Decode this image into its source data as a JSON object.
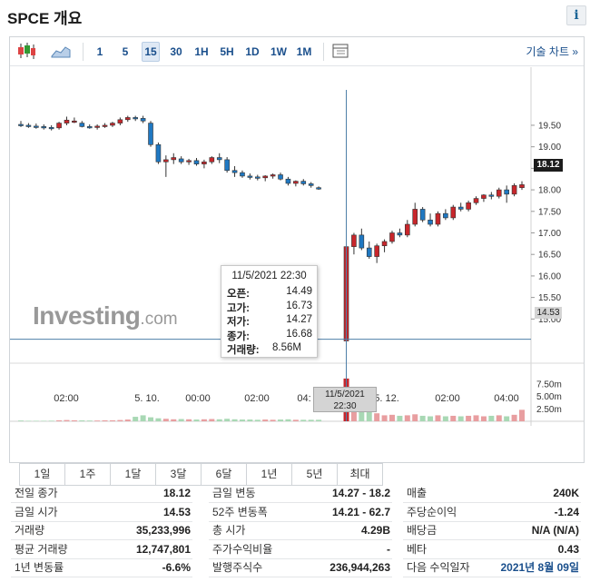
{
  "header": {
    "title": "SPCE 개요",
    "info_icon": "i"
  },
  "toolbar": {
    "intervals": [
      "1",
      "5",
      "15",
      "30",
      "1H",
      "5H",
      "1D",
      "1W",
      "1M"
    ],
    "active_interval": "15",
    "tech_chart_link": "기술 차트 »"
  },
  "chart_data": {
    "type": "candlestick",
    "y_axis_ticks": [
      "19.50",
      "19.00",
      "18.50",
      "18.00",
      "17.50",
      "17.00",
      "16.50",
      "16.00",
      "15.50",
      "15.00"
    ],
    "volume_axis_ticks": [
      "7.50m",
      "5.00m",
      "2.50m"
    ],
    "x_axis_labels": [
      "02:00",
      "5. 10.",
      "00:00",
      "02:00",
      "04:",
      "5. 12.",
      "02:00",
      "04:00"
    ],
    "ylim": [
      14.1,
      19.9
    ],
    "last_price": "18.12",
    "cursor_price": "14.53",
    "cursor_time": [
      "11/5/2021",
      "22:30"
    ],
    "candles": [
      {
        "o": 19.52,
        "h": 19.6,
        "l": 19.46,
        "c": 19.5
      },
      {
        "o": 19.5,
        "h": 19.55,
        "l": 19.44,
        "c": 19.48
      },
      {
        "o": 19.48,
        "h": 19.54,
        "l": 19.42,
        "c": 19.47
      },
      {
        "o": 19.47,
        "h": 19.52,
        "l": 19.4,
        "c": 19.45
      },
      {
        "o": 19.45,
        "h": 19.5,
        "l": 19.38,
        "c": 19.44
      },
      {
        "o": 19.44,
        "h": 19.58,
        "l": 19.4,
        "c": 19.55
      },
      {
        "o": 19.55,
        "h": 19.7,
        "l": 19.5,
        "c": 19.62
      },
      {
        "o": 19.6,
        "h": 19.68,
        "l": 19.55,
        "c": 19.6
      },
      {
        "o": 19.55,
        "h": 19.6,
        "l": 19.45,
        "c": 19.47
      },
      {
        "o": 19.47,
        "h": 19.52,
        "l": 19.42,
        "c": 19.45
      },
      {
        "o": 19.45,
        "h": 19.52,
        "l": 19.4,
        "c": 19.48
      },
      {
        "o": 19.48,
        "h": 19.55,
        "l": 19.44,
        "c": 19.5
      },
      {
        "o": 19.5,
        "h": 19.58,
        "l": 19.46,
        "c": 19.55
      },
      {
        "o": 19.55,
        "h": 19.68,
        "l": 19.5,
        "c": 19.63
      },
      {
        "o": 19.63,
        "h": 19.72,
        "l": 19.58,
        "c": 19.68
      },
      {
        "o": 19.68,
        "h": 19.72,
        "l": 19.6,
        "c": 19.66
      },
      {
        "o": 19.66,
        "h": 19.72,
        "l": 19.55,
        "c": 19.6
      },
      {
        "o": 19.55,
        "h": 19.6,
        "l": 19.0,
        "c": 19.05
      },
      {
        "o": 19.05,
        "h": 19.1,
        "l": 18.6,
        "c": 18.65
      },
      {
        "o": 18.65,
        "h": 18.8,
        "l": 18.3,
        "c": 18.7
      },
      {
        "o": 18.7,
        "h": 18.85,
        "l": 18.6,
        "c": 18.75
      },
      {
        "o": 18.72,
        "h": 18.78,
        "l": 18.6,
        "c": 18.65
      },
      {
        "o": 18.65,
        "h": 18.72,
        "l": 18.58,
        "c": 18.68
      },
      {
        "o": 18.68,
        "h": 18.74,
        "l": 18.56,
        "c": 18.6
      },
      {
        "o": 18.6,
        "h": 18.7,
        "l": 18.5,
        "c": 18.65
      },
      {
        "o": 18.65,
        "h": 18.78,
        "l": 18.6,
        "c": 18.75
      },
      {
        "o": 18.75,
        "h": 18.85,
        "l": 18.62,
        "c": 18.7
      },
      {
        "o": 18.7,
        "h": 18.76,
        "l": 18.4,
        "c": 18.45
      },
      {
        "o": 18.45,
        "h": 18.55,
        "l": 18.3,
        "c": 18.4
      },
      {
        "o": 18.4,
        "h": 18.45,
        "l": 18.28,
        "c": 18.32
      },
      {
        "o": 18.32,
        "h": 18.38,
        "l": 18.24,
        "c": 18.3
      },
      {
        "o": 18.3,
        "h": 18.35,
        "l": 18.22,
        "c": 18.28
      },
      {
        "o": 18.28,
        "h": 18.34,
        "l": 18.2,
        "c": 18.32
      },
      {
        "o": 18.32,
        "h": 18.38,
        "l": 18.26,
        "c": 18.35
      },
      {
        "o": 18.35,
        "h": 18.4,
        "l": 18.22,
        "c": 18.25
      },
      {
        "o": 18.25,
        "h": 18.3,
        "l": 18.1,
        "c": 18.15
      },
      {
        "o": 18.15,
        "h": 18.22,
        "l": 18.08,
        "c": 18.2
      },
      {
        "o": 18.2,
        "h": 18.25,
        "l": 18.1,
        "c": 18.14
      },
      {
        "o": 18.14,
        "h": 18.18,
        "l": 18.05,
        "c": 18.1
      },
      {
        "o": 18.05,
        "h": 18.08,
        "l": 18.0,
        "c": 18.02
      },
      {
        "o": 14.49,
        "h": 16.73,
        "l": 14.27,
        "c": 16.68
      },
      {
        "o": 16.68,
        "h": 17.0,
        "l": 16.5,
        "c": 16.95
      },
      {
        "o": 16.95,
        "h": 17.1,
        "l": 16.6,
        "c": 16.65
      },
      {
        "o": 16.65,
        "h": 16.8,
        "l": 16.4,
        "c": 16.45
      },
      {
        "o": 16.45,
        "h": 16.75,
        "l": 16.3,
        "c": 16.7
      },
      {
        "o": 16.7,
        "h": 16.85,
        "l": 16.55,
        "c": 16.8
      },
      {
        "o": 16.8,
        "h": 17.05,
        "l": 16.75,
        "c": 17.0
      },
      {
        "o": 17.0,
        "h": 17.1,
        "l": 16.9,
        "c": 16.95
      },
      {
        "o": 16.95,
        "h": 17.3,
        "l": 16.9,
        "c": 17.2
      },
      {
        "o": 17.2,
        "h": 17.7,
        "l": 17.15,
        "c": 17.55
      },
      {
        "o": 17.55,
        "h": 17.6,
        "l": 17.25,
        "c": 17.3
      },
      {
        "o": 17.3,
        "h": 17.45,
        "l": 17.15,
        "c": 17.2
      },
      {
        "o": 17.2,
        "h": 17.5,
        "l": 17.15,
        "c": 17.45
      },
      {
        "o": 17.45,
        "h": 17.55,
        "l": 17.3,
        "c": 17.35
      },
      {
        "o": 17.35,
        "h": 17.65,
        "l": 17.3,
        "c": 17.6
      },
      {
        "o": 17.6,
        "h": 17.7,
        "l": 17.5,
        "c": 17.55
      },
      {
        "o": 17.55,
        "h": 17.75,
        "l": 17.5,
        "c": 17.7
      },
      {
        "o": 17.7,
        "h": 17.85,
        "l": 17.65,
        "c": 17.8
      },
      {
        "o": 17.8,
        "h": 17.9,
        "l": 17.72,
        "c": 17.88
      },
      {
        "o": 17.88,
        "h": 17.95,
        "l": 17.78,
        "c": 17.85
      },
      {
        "o": 17.85,
        "h": 18.05,
        "l": 17.8,
        "c": 18.0
      },
      {
        "o": 18.0,
        "h": 18.1,
        "l": 17.7,
        "c": 17.9
      },
      {
        "o": 17.9,
        "h": 18.15,
        "l": 17.85,
        "c": 18.1
      },
      {
        "o": 18.05,
        "h": 18.2,
        "l": 18.0,
        "c": 18.12
      }
    ],
    "volumes": [
      0.15,
      0.1,
      0.1,
      0.1,
      0.12,
      0.2,
      0.25,
      0.2,
      0.18,
      0.15,
      0.15,
      0.2,
      0.2,
      0.25,
      0.35,
      0.9,
      1.2,
      0.8,
      0.6,
      0.5,
      0.4,
      0.45,
      0.4,
      0.35,
      0.4,
      0.45,
      0.4,
      0.5,
      0.4,
      0.35,
      0.35,
      0.3,
      0.35,
      0.3,
      0.35,
      0.4,
      0.3,
      0.3,
      0.3,
      0.3,
      8.56,
      4.5,
      3.2,
      2.2,
      1.6,
      1.2,
      1.3,
      1.1,
      1.2,
      1.4,
      1.1,
      1.0,
      1.2,
      1.0,
      1.1,
      1.0,
      1.1,
      1.2,
      1.0,
      1.1,
      1.2,
      1.0,
      1.3,
      2.3
    ],
    "volume_max": 10,
    "colors": {
      "up": "#c8262b",
      "down": "#1f78c2",
      "vol_up": "#e89ea0",
      "vol_down": "#a8d8b4",
      "cursor": "#4e7fa8"
    }
  },
  "tooltip": {
    "datetime": "11/5/2021 22:30",
    "rows": [
      {
        "label": "오픈:",
        "value": "14.49"
      },
      {
        "label": "고가:",
        "value": "16.73"
      },
      {
        "label": "저가:",
        "value": "14.27"
      },
      {
        "label": "종가:",
        "value": "16.68"
      },
      {
        "label": "거래량:",
        "value": "8.56M"
      }
    ]
  },
  "watermark": {
    "brand": "Investing",
    "domain": ".com"
  },
  "range_tabs": [
    "1일",
    "1주",
    "1달",
    "3달",
    "6달",
    "1년",
    "5년",
    "최대"
  ],
  "stats": {
    "col1": [
      {
        "label": "전일 종가",
        "value": "18.12"
      },
      {
        "label": "금일 시가",
        "value": "14.53"
      },
      {
        "label": "거래량",
        "value": "35,233,996"
      },
      {
        "label": "평균 거래량",
        "value": "12,747,801"
      },
      {
        "label": "1년 변동률",
        "value": "-6.6%"
      }
    ],
    "col2": [
      {
        "label": "금일 변동",
        "value": "14.27 - 18.2"
      },
      {
        "label": "52주 변동폭",
        "value": "14.21 - 62.7"
      },
      {
        "label": "총 시가",
        "value": "4.29B"
      },
      {
        "label": "주가수익비율",
        "value": "-"
      },
      {
        "label": "발행주식수",
        "value": "236,944,263"
      }
    ],
    "col3": [
      {
        "label": "매출",
        "value": "240K"
      },
      {
        "label": "주당순이익",
        "value": "-1.24"
      },
      {
        "label": "배당금",
        "value": "N/A (N/A)"
      },
      {
        "label": "베타",
        "value": "0.43"
      },
      {
        "label": "다음 수익일자",
        "value": "2021년 8월 09일"
      }
    ]
  }
}
